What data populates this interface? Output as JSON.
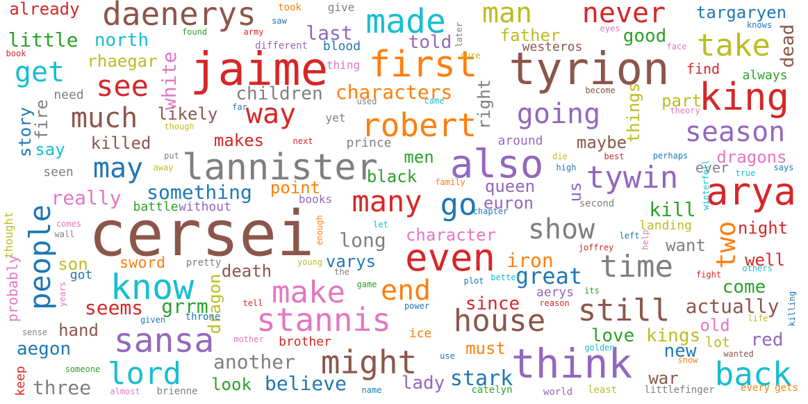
{
  "palette": {
    "blue": "#1f77b4",
    "orange": "#ff7f0e",
    "green": "#2ca02c",
    "red": "#d62728",
    "purple": "#9467bd",
    "brown": "#8c564b",
    "pink": "#e377c2",
    "gray": "#7f7f7f",
    "olive": "#bcbd22",
    "cyan": "#17becf"
  },
  "words": [
    {
      "text": "cersei",
      "color": "brown"
    },
    {
      "text": "jaime",
      "color": "red"
    },
    {
      "text": "tyrion",
      "color": "brown"
    },
    {
      "text": "think",
      "color": "purple"
    },
    {
      "text": "lannister",
      "color": "gray"
    },
    {
      "text": "daenerys",
      "color": "brown"
    },
    {
      "text": "first",
      "color": "orange"
    },
    {
      "text": "also",
      "color": "purple"
    },
    {
      "text": "even",
      "color": "red"
    },
    {
      "text": "made",
      "color": "cyan"
    },
    {
      "text": "know",
      "color": "cyan"
    },
    {
      "text": "sansa",
      "color": "purple"
    },
    {
      "text": "stannis",
      "color": "pink"
    },
    {
      "text": "might",
      "color": "brown"
    },
    {
      "text": "robert",
      "color": "orange"
    },
    {
      "text": "king",
      "color": "red"
    },
    {
      "text": "arya",
      "color": "red"
    },
    {
      "text": "house",
      "color": "brown"
    },
    {
      "text": "back",
      "color": "cyan"
    },
    {
      "text": "lord",
      "color": "cyan"
    },
    {
      "text": "make",
      "color": "pink"
    },
    {
      "text": "people",
      "color": "blue"
    },
    {
      "text": "time",
      "color": "gray"
    },
    {
      "text": "still",
      "color": "brown"
    },
    {
      "text": "show",
      "color": "gray"
    },
    {
      "text": "many",
      "color": "red"
    },
    {
      "text": "season",
      "color": "purple"
    },
    {
      "text": "tywin",
      "color": "purple"
    },
    {
      "text": "going",
      "color": "purple"
    },
    {
      "text": "take",
      "color": "olive"
    },
    {
      "text": "never",
      "color": "red"
    },
    {
      "text": "man",
      "color": "olive"
    },
    {
      "text": "see",
      "color": "red"
    },
    {
      "text": "much",
      "color": "brown"
    },
    {
      "text": "way",
      "color": "red"
    },
    {
      "text": "get",
      "color": "cyan"
    },
    {
      "text": "may",
      "color": "blue"
    },
    {
      "text": "go",
      "color": "blue"
    },
    {
      "text": "end",
      "color": "orange"
    },
    {
      "text": "two",
      "color": "orange"
    },
    {
      "text": "last",
      "color": "purple"
    },
    {
      "text": "little",
      "color": "green"
    },
    {
      "text": "north",
      "color": "cyan"
    },
    {
      "text": "already",
      "color": "red"
    },
    {
      "text": "targaryen",
      "color": "blue"
    },
    {
      "text": "good",
      "color": "green"
    },
    {
      "text": "dead",
      "color": "brown"
    },
    {
      "text": "told",
      "color": "purple"
    },
    {
      "text": "father",
      "color": "olive"
    },
    {
      "text": "westeros",
      "color": "brown"
    },
    {
      "text": "rhaegar",
      "color": "olive"
    },
    {
      "text": "white",
      "color": "pink"
    },
    {
      "text": "blood",
      "color": "blue"
    },
    {
      "text": "children",
      "color": "gray"
    },
    {
      "text": "characters",
      "color": "orange"
    },
    {
      "text": "right",
      "color": "gray"
    },
    {
      "text": "likely",
      "color": "brown"
    },
    {
      "text": "things",
      "color": "olive"
    },
    {
      "text": "part",
      "color": "olive"
    },
    {
      "text": "find",
      "color": "red"
    },
    {
      "text": "always",
      "color": "green"
    },
    {
      "text": "story",
      "color": "blue"
    },
    {
      "text": "fire",
      "color": "gray"
    },
    {
      "text": "killed",
      "color": "brown"
    },
    {
      "text": "makes",
      "color": "red"
    },
    {
      "text": "prince",
      "color": "gray"
    },
    {
      "text": "around",
      "color": "purple"
    },
    {
      "text": "maybe",
      "color": "brown"
    },
    {
      "text": "dragons",
      "color": "pink"
    },
    {
      "text": "say",
      "color": "cyan"
    },
    {
      "text": "seen",
      "color": "gray"
    },
    {
      "text": "men",
      "color": "green"
    },
    {
      "text": "black",
      "color": "green"
    },
    {
      "text": "ever",
      "color": "gray"
    },
    {
      "text": "really",
      "color": "pink"
    },
    {
      "text": "something",
      "color": "blue"
    },
    {
      "text": "point",
      "color": "orange"
    },
    {
      "text": "queen",
      "color": "purple"
    },
    {
      "text": "euron",
      "color": "purple"
    },
    {
      "text": "us",
      "color": "purple"
    },
    {
      "text": "kill",
      "color": "green"
    },
    {
      "text": "battle",
      "color": "green"
    },
    {
      "text": "without",
      "color": "purple"
    },
    {
      "text": "books",
      "color": "purple"
    },
    {
      "text": "second",
      "color": "gray"
    },
    {
      "text": "long",
      "color": "gray"
    },
    {
      "text": "character",
      "color": "pink"
    },
    {
      "text": "landing",
      "color": "olive"
    },
    {
      "text": "night",
      "color": "red"
    },
    {
      "text": "want",
      "color": "gray"
    },
    {
      "text": "probably",
      "color": "pink"
    },
    {
      "text": "thought",
      "color": "olive"
    },
    {
      "text": "son",
      "color": "olive"
    },
    {
      "text": "got",
      "color": "blue"
    },
    {
      "text": "sword",
      "color": "orange"
    },
    {
      "text": "pretty",
      "color": "gray"
    },
    {
      "text": "death",
      "color": "brown"
    },
    {
      "text": "varys",
      "color": "blue"
    },
    {
      "text": "iron",
      "color": "orange"
    },
    {
      "text": "well",
      "color": "red"
    },
    {
      "text": "great",
      "color": "blue"
    },
    {
      "text": "come",
      "color": "green"
    },
    {
      "text": "seems",
      "color": "red"
    },
    {
      "text": "grrm",
      "color": "green"
    },
    {
      "text": "dragon",
      "color": "olive"
    },
    {
      "text": "since",
      "color": "red"
    },
    {
      "text": "aerys",
      "color": "purple"
    },
    {
      "text": "actually",
      "color": "brown"
    },
    {
      "text": "hand",
      "color": "brown"
    },
    {
      "text": "throne",
      "color": "blue"
    },
    {
      "text": "old",
      "color": "pink"
    },
    {
      "text": "kings",
      "color": "olive"
    },
    {
      "text": "love",
      "color": "green"
    },
    {
      "text": "red",
      "color": "purple"
    },
    {
      "text": "aegon",
      "color": "blue"
    },
    {
      "text": "another",
      "color": "gray"
    },
    {
      "text": "brother",
      "color": "red"
    },
    {
      "text": "ice",
      "color": "orange"
    },
    {
      "text": "must",
      "color": "orange"
    },
    {
      "text": "new",
      "color": "blue"
    },
    {
      "text": "lot",
      "color": "olive"
    },
    {
      "text": "three",
      "color": "gray"
    },
    {
      "text": "look",
      "color": "green"
    },
    {
      "text": "believe",
      "color": "blue"
    },
    {
      "text": "lady",
      "color": "purple"
    },
    {
      "text": "stark",
      "color": "blue"
    },
    {
      "text": "war",
      "color": "brown"
    },
    {
      "text": "keep",
      "color": "red"
    },
    {
      "text": "brienne",
      "color": "gray"
    },
    {
      "text": "catelyn",
      "color": "green"
    },
    {
      "text": "world",
      "color": "purple"
    },
    {
      "text": "least",
      "color": "olive"
    },
    {
      "text": "littlefinger",
      "color": "gray"
    },
    {
      "text": "every",
      "color": "orange"
    },
    {
      "text": "gets",
      "color": "orange"
    },
    {
      "text": "took",
      "color": "orange"
    },
    {
      "text": "give",
      "color": "gray"
    },
    {
      "text": "saw",
      "color": "blue"
    },
    {
      "text": "found",
      "color": "green"
    },
    {
      "text": "army",
      "color": "red"
    },
    {
      "text": "different",
      "color": "purple"
    },
    {
      "text": "later",
      "color": "gray"
    },
    {
      "text": "eyes",
      "color": "pink"
    },
    {
      "text": "knows",
      "color": "blue"
    },
    {
      "text": "book",
      "color": "red"
    },
    {
      "text": "sure",
      "color": "olive"
    },
    {
      "text": "face",
      "color": "pink"
    },
    {
      "text": "thing",
      "color": "pink"
    },
    {
      "text": "need",
      "color": "gray"
    },
    {
      "text": "used",
      "color": "gray"
    },
    {
      "text": "came",
      "color": "cyan"
    },
    {
      "text": "become",
      "color": "brown"
    },
    {
      "text": "far",
      "color": "blue"
    },
    {
      "text": "though",
      "color": "olive"
    },
    {
      "text": "yet",
      "color": "gray"
    },
    {
      "text": "theory",
      "color": "pink"
    },
    {
      "text": "next",
      "color": "red"
    },
    {
      "text": "put",
      "color": "gray"
    },
    {
      "text": "away",
      "color": "olive"
    },
    {
      "text": "die",
      "color": "olive"
    },
    {
      "text": "high",
      "color": "blue"
    },
    {
      "text": "best",
      "color": "red"
    },
    {
      "text": "perhaps",
      "color": "blue"
    },
    {
      "text": "true",
      "color": "cyan"
    },
    {
      "text": "says",
      "color": "blue"
    },
    {
      "text": "winterfell",
      "color": "cyan"
    },
    {
      "text": "family",
      "color": "orange"
    },
    {
      "text": "comes",
      "color": "pink"
    },
    {
      "text": "wall",
      "color": "gray"
    },
    {
      "text": "let",
      "color": "cyan"
    },
    {
      "text": "enough",
      "color": "orange"
    },
    {
      "text": "chapter",
      "color": "blue"
    },
    {
      "text": "left",
      "color": "blue"
    },
    {
      "text": "help",
      "color": "pink"
    },
    {
      "text": "joffrey",
      "color": "red"
    },
    {
      "text": "young",
      "color": "olive"
    },
    {
      "text": "the",
      "color": "gray"
    },
    {
      "text": "plot",
      "color": "blue"
    },
    {
      "text": "better",
      "color": "cyan"
    },
    {
      "text": "fight",
      "color": "red"
    },
    {
      "text": "others",
      "color": "cyan"
    },
    {
      "text": "years",
      "color": "pink"
    },
    {
      "text": "tell",
      "color": "red"
    },
    {
      "text": "game",
      "color": "green"
    },
    {
      "text": "power",
      "color": "blue"
    },
    {
      "text": "reason",
      "color": "red"
    },
    {
      "text": "its",
      "color": "green"
    },
    {
      "text": "killing",
      "color": "blue"
    },
    {
      "text": "life",
      "color": "olive"
    },
    {
      "text": "sense",
      "color": "gray"
    },
    {
      "text": "given",
      "color": "blue"
    },
    {
      "text": "mother",
      "color": "pink"
    },
    {
      "text": "golden",
      "color": "cyan"
    },
    {
      "text": "snow",
      "color": "orange"
    },
    {
      "text": "wanted",
      "color": "brown"
    },
    {
      "text": "use",
      "color": "blue"
    },
    {
      "text": "someone",
      "color": "green"
    },
    {
      "text": "almost",
      "color": "pink"
    },
    {
      "text": "name",
      "color": "blue"
    }
  ]
}
